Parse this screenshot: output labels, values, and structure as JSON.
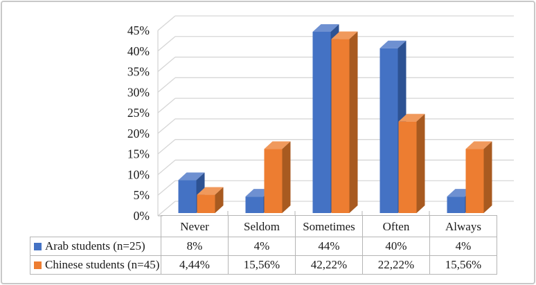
{
  "chart_data": {
    "type": "bar",
    "variant": "3d-clustered-column-with-data-table",
    "title": "",
    "xlabel": "",
    "ylabel": "",
    "categories": [
      "Never",
      "Seldom",
      "Sometimes",
      "Often",
      "Always"
    ],
    "series": [
      {
        "name": "Arab students (n=25)",
        "values": [
          8,
          4,
          44,
          40,
          4
        ],
        "display_values": [
          "8%",
          "4%",
          "44%",
          "40%",
          "4%"
        ],
        "colors": {
          "front": "#4472C4",
          "top": "#6E90D1",
          "side": "#2D5293"
        }
      },
      {
        "name": "Chinese students (n=45)",
        "values": [
          4.44,
          15.56,
          42.22,
          22.22,
          15.56
        ],
        "display_values": [
          "4,44%",
          "15,56%",
          "42,22%",
          "22,22%",
          "15,56%"
        ],
        "colors": {
          "front": "#ED7D31",
          "top": "#F0995C",
          "side": "#A85A20"
        }
      }
    ],
    "y_axis": {
      "min": 0,
      "max": 45,
      "step": 5,
      "unit": "%",
      "tick_labels": [
        "0%",
        "5%",
        "10%",
        "15%",
        "20%",
        "25%",
        "30%",
        "35%",
        "40%",
        "45%"
      ]
    },
    "grid": true,
    "legend_position": "left-of-data-table"
  },
  "colors": {
    "gridline": "#d6d6d6",
    "table_border": "#b5b5b5",
    "text": "#1a1a1a",
    "frame_border": "#c8c8c8",
    "background": "#ffffff"
  }
}
